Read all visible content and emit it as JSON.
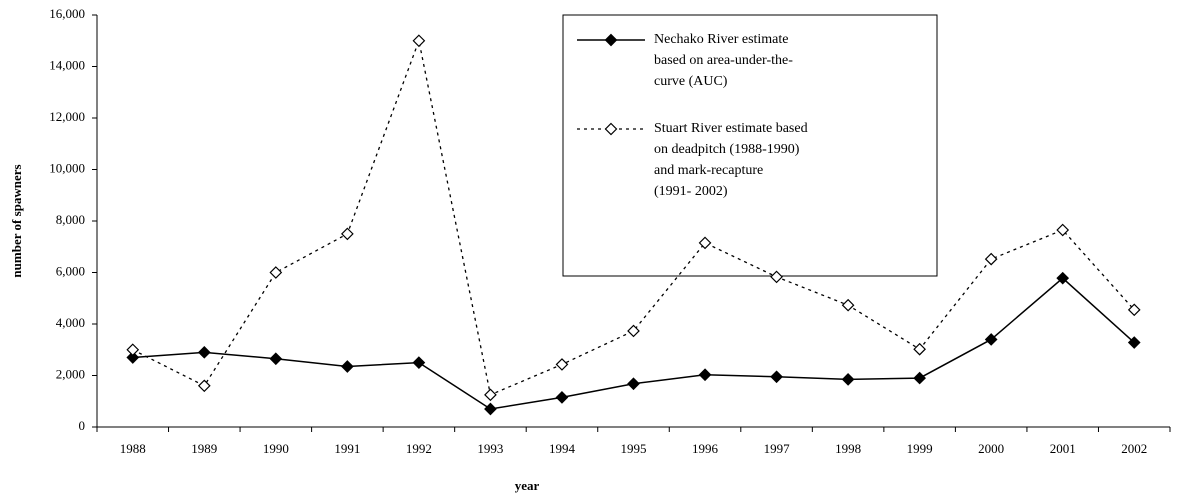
{
  "chart_data": {
    "type": "line",
    "x_label": "year",
    "y_label": "number of spawners",
    "categories": [
      "1988",
      "1989",
      "1990",
      "1991",
      "1992",
      "1993",
      "1994",
      "1995",
      "1996",
      "1997",
      "1998",
      "1999",
      "2000",
      "2001",
      "2002"
    ],
    "series": [
      {
        "name": "Nechako River estimate\nbased on area-under-the-\ncurve (AUC)",
        "color": "#000000",
        "dash": false,
        "marker_fill": "#000000",
        "values": [
          2700,
          2900,
          2650,
          2350,
          2500,
          700,
          1150,
          1680,
          2030,
          1950,
          1850,
          1900,
          3400,
          5780,
          3280
        ]
      },
      {
        "name": "Stuart River estimate based\non deadpitch (1988-1990)\nand mark-recapture\n(1991- 2002)",
        "color": "#000000",
        "dash": true,
        "marker_fill": "#ffffff",
        "values": [
          3000,
          1600,
          6000,
          7500,
          15000,
          1250,
          2430,
          3730,
          7150,
          5830,
          4730,
          3020,
          6520,
          7650,
          4550
        ]
      }
    ],
    "ylim": [
      0,
      16000
    ],
    "yticks": [
      0,
      {
        "value": 2000,
        "label": "2,000"
      },
      {
        "value": 4000,
        "label": "4,000"
      },
      {
        "value": 6000,
        "label": "6,000"
      },
      {
        "value": 8000,
        "label": "8,000"
      },
      {
        "value": 10000,
        "label": "10,000"
      },
      {
        "value": 12000,
        "label": "12,000"
      },
      {
        "value": 14000,
        "label": "14,000"
      },
      {
        "value": 16000,
        "label": "16,000"
      }
    ],
    "grid": false,
    "legend": "top-right"
  }
}
